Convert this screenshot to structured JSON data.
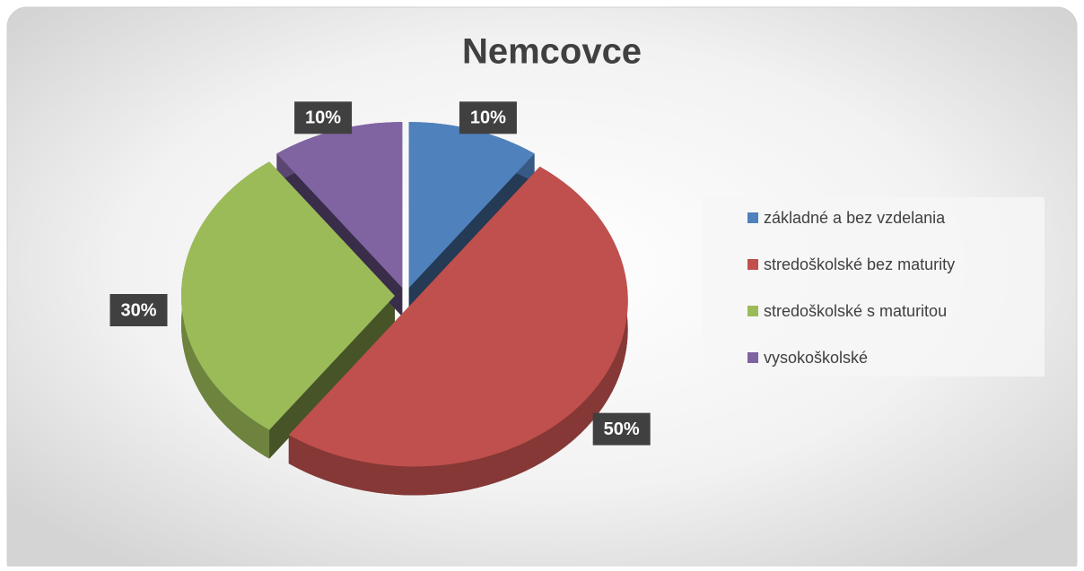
{
  "chart_data": {
    "type": "pie",
    "title": "Nemcovce",
    "categories": [
      "základné a bez vzdelania",
      "stredoškolské bez maturity",
      "stredoškolské s maturitou",
      "vysokoškolské"
    ],
    "values": [
      10,
      50,
      30,
      10
    ],
    "value_labels": [
      "10%",
      "50%",
      "30%",
      "10%"
    ],
    "colors": [
      "#4f81bd",
      "#c0504d",
      "#9bbb59",
      "#8064a2"
    ],
    "legend": "right"
  }
}
